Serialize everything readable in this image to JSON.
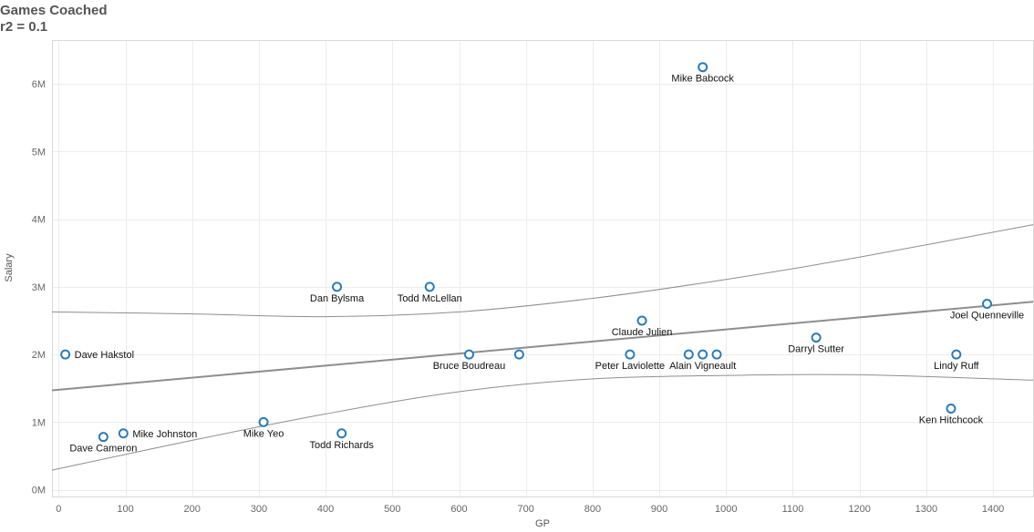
{
  "chart_data": {
    "type": "scatter",
    "title": "Games Coached",
    "subtitle": "r2 = 0.1",
    "xlabel": "GP",
    "ylabel": "Salary",
    "xlim": [
      -10,
      1460
    ],
    "ylim": [
      -100000,
      6650000
    ],
    "x_ticks": [
      0,
      100,
      200,
      300,
      400,
      500,
      600,
      700,
      800,
      900,
      1000,
      1100,
      1200,
      1300,
      1400
    ],
    "y_ticks": [
      {
        "value": 0,
        "label": "0M"
      },
      {
        "value": 1000000,
        "label": "1M"
      },
      {
        "value": 2000000,
        "label": "2M"
      },
      {
        "value": 3000000,
        "label": "3M"
      },
      {
        "value": 4000000,
        "label": "4M"
      },
      {
        "value": 5000000,
        "label": "5M"
      },
      {
        "value": 6000000,
        "label": "6M"
      }
    ],
    "grid": true,
    "points": [
      {
        "x": 965,
        "y": 6250000,
        "label": "Mike Babcock"
      },
      {
        "x": 417,
        "y": 3000000,
        "label": "Dan Bylsma"
      },
      {
        "x": 556,
        "y": 3000000,
        "label": "Todd McLellan"
      },
      {
        "x": 1391,
        "y": 2750000,
        "label": "Joel Quenneville"
      },
      {
        "x": 874,
        "y": 2500000,
        "label": "Claude Julien"
      },
      {
        "x": 1135,
        "y": 2250000,
        "label": "Darryl Sutter"
      },
      {
        "x": 10,
        "y": 2000000,
        "label": "Dave Hakstol"
      },
      {
        "x": 615,
        "y": 2000000,
        "label": "Bruce Boudreau"
      },
      {
        "x": 690,
        "y": 2000000,
        "label": ""
      },
      {
        "x": 856,
        "y": 2000000,
        "label": "Peter Laviolette"
      },
      {
        "x": 944,
        "y": 2000000,
        "label": ""
      },
      {
        "x": 965,
        "y": 2000000,
        "label": "Alain Vigneault"
      },
      {
        "x": 986,
        "y": 2000000,
        "label": ""
      },
      {
        "x": 1345,
        "y": 2000000,
        "label": "Lindy Ruff"
      },
      {
        "x": 1337,
        "y": 1200000,
        "label": "Ken Hitchcock"
      },
      {
        "x": 307,
        "y": 1000000,
        "label": "Mike Yeo"
      },
      {
        "x": 97,
        "y": 833000,
        "label": "Mike Johnston"
      },
      {
        "x": 424,
        "y": 833000,
        "label": "Todd Richards"
      },
      {
        "x": 67,
        "y": 780000,
        "label": "Dave Cameron"
      }
    ],
    "trend_line": [
      [
        -10,
        1470000
      ],
      [
        1460,
        2780000
      ]
    ],
    "upper_band": [
      [
        -10,
        2630000
      ],
      [
        200,
        2600000
      ],
      [
        400,
        2560000
      ],
      [
        600,
        2630000
      ],
      [
        800,
        2830000
      ],
      [
        1000,
        3110000
      ],
      [
        1200,
        3440000
      ],
      [
        1460,
        3920000
      ]
    ],
    "lower_band": [
      [
        -10,
        290000
      ],
      [
        200,
        730000
      ],
      [
        400,
        1120000
      ],
      [
        600,
        1450000
      ],
      [
        800,
        1640000
      ],
      [
        1000,
        1690000
      ],
      [
        1200,
        1700000
      ],
      [
        1460,
        1620000
      ]
    ]
  }
}
